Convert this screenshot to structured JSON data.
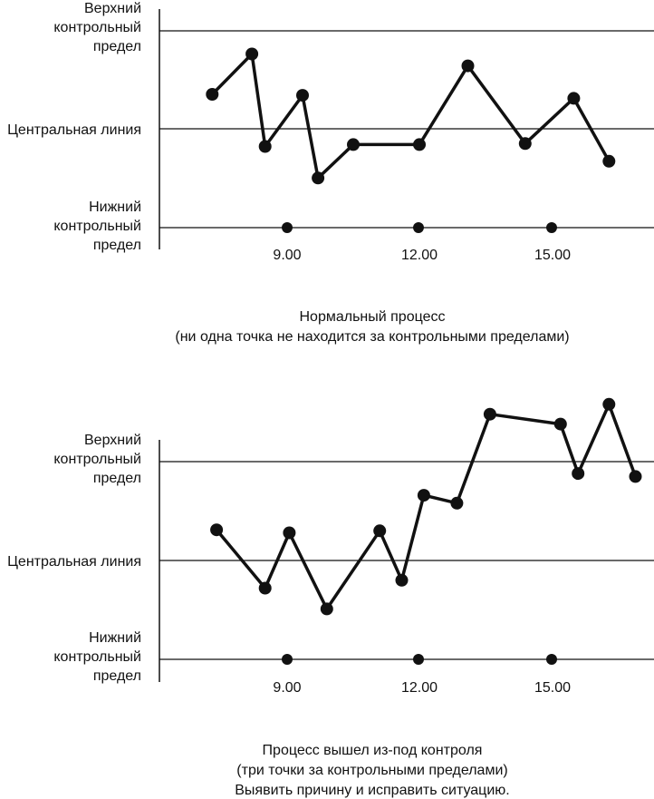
{
  "chart_data": [
    {
      "type": "line",
      "grid": false,
      "legend": "none",
      "ylim": [
        -1,
        1
      ],
      "x": [
        7.3,
        8.2,
        8.5,
        9.35,
        9.7,
        10.5,
        12,
        13.1,
        14.4,
        15.5,
        16.3
      ],
      "values": [
        0.35,
        0.76,
        -0.18,
        0.34,
        -0.5,
        -0.16,
        -0.16,
        0.64,
        -0.15,
        0.31,
        -0.33
      ],
      "reference_lines": [
        {
          "label_lines": [
            "Верхний",
            "контрольный",
            "предел"
          ],
          "y": 1
        },
        {
          "label_lines": [
            "Центральная линия"
          ],
          "y": 0
        },
        {
          "label_lines": [
            "Нижний",
            "контрольный",
            "предел"
          ],
          "y": -1
        }
      ],
      "x_ticks": [
        9,
        12,
        15
      ],
      "x_tick_labels": [
        "9.00",
        "12.00",
        "15.00"
      ],
      "caption_lines": [
        "Нормальный процесс",
        "(ни одна точка не находится за контрольными пределами)"
      ]
    },
    {
      "type": "line",
      "grid": false,
      "legend": "none",
      "ylim": [
        -1,
        1
      ],
      "x": [
        7.4,
        8.5,
        9.05,
        9.9,
        11.1,
        11.6,
        12.1,
        12.85,
        13.6,
        15.2,
        15.6,
        16.3,
        16.9
      ],
      "values": [
        0.31,
        -0.28,
        0.28,
        -0.49,
        0.3,
        -0.2,
        0.66,
        0.58,
        1.48,
        1.38,
        0.88,
        1.58,
        0.85
      ],
      "reference_lines": [
        {
          "label_lines": [
            "Верхний",
            "контрольный",
            "предел"
          ],
          "y": 1
        },
        {
          "label_lines": [
            "Центральная линия"
          ],
          "y": 0
        },
        {
          "label_lines": [
            "Нижний",
            "контрольный",
            "предел"
          ],
          "y": -1
        }
      ],
      "x_ticks": [
        9,
        12,
        15
      ],
      "x_tick_labels": [
        "9.00",
        "12.00",
        "15.00"
      ],
      "caption_lines": [
        "Процесс вышел из-под контроля",
        "(три точки за контрольными пределами)",
        "Выявить причину и исправить ситуацию."
      ]
    }
  ]
}
